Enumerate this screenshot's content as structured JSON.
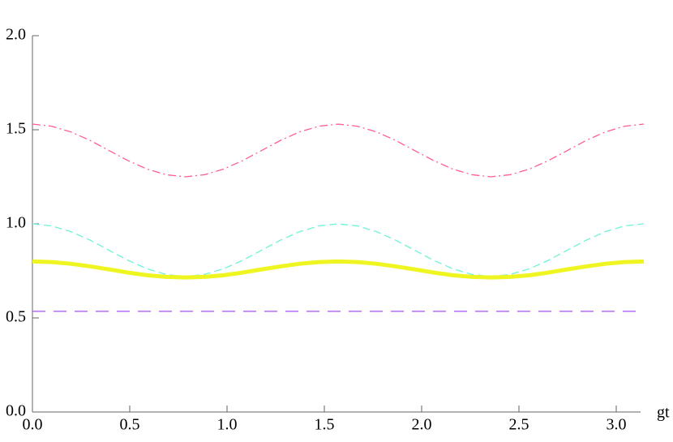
{
  "chart_data": {
    "type": "line",
    "x_label": "gt",
    "x": [
      0,
      0.098,
      0.196,
      0.295,
      0.393,
      0.491,
      0.589,
      0.687,
      0.785,
      0.884,
      0.982,
      1.08,
      1.178,
      1.276,
      1.374,
      1.473,
      1.571,
      1.669,
      1.767,
      1.865,
      1.963,
      2.062,
      2.16,
      2.258,
      2.356,
      2.454,
      2.553,
      2.651,
      2.749,
      2.847,
      2.945,
      3.043,
      3.142
    ],
    "series": [
      {
        "color": "#ff5f93",
        "dash": "10,4,2,4",
        "width": 1.3,
        "values": [
          1.53,
          1.519,
          1.489,
          1.444,
          1.39,
          1.336,
          1.291,
          1.261,
          1.25,
          1.261,
          1.291,
          1.336,
          1.39,
          1.444,
          1.489,
          1.519,
          1.53,
          1.519,
          1.489,
          1.444,
          1.39,
          1.336,
          1.291,
          1.261,
          1.25,
          1.261,
          1.291,
          1.336,
          1.39,
          1.444,
          1.489,
          1.519,
          1.53
        ]
      },
      {
        "color": "#6ff2d6",
        "dash": "9,5",
        "width": 1.3,
        "values": [
          1.0,
          0.989,
          0.959,
          0.914,
          0.86,
          0.806,
          0.761,
          0.731,
          0.72,
          0.731,
          0.761,
          0.806,
          0.86,
          0.914,
          0.959,
          0.989,
          1.0,
          0.989,
          0.959,
          0.914,
          0.86,
          0.806,
          0.761,
          0.731,
          0.72,
          0.731,
          0.761,
          0.806,
          0.86,
          0.914,
          0.959,
          0.989,
          1.0
        ]
      },
      {
        "color": "#eef520",
        "dash": "none",
        "width": 5,
        "values": [
          0.8,
          0.797,
          0.788,
          0.774,
          0.758,
          0.741,
          0.727,
          0.718,
          0.715,
          0.718,
          0.727,
          0.741,
          0.758,
          0.774,
          0.788,
          0.797,
          0.8,
          0.797,
          0.788,
          0.774,
          0.758,
          0.741,
          0.727,
          0.718,
          0.715,
          0.718,
          0.727,
          0.741,
          0.758,
          0.774,
          0.788,
          0.797,
          0.8
        ]
      },
      {
        "color": "#a64ff0",
        "dash": "16,10",
        "width": 1.3,
        "values": [
          0.535,
          0.535,
          0.535,
          0.535,
          0.535,
          0.535,
          0.535,
          0.535,
          0.535,
          0.535,
          0.535,
          0.535,
          0.535,
          0.535,
          0.535,
          0.535,
          0.535,
          0.535,
          0.535,
          0.535,
          0.535,
          0.535,
          0.535,
          0.535,
          0.535,
          0.535,
          0.535,
          0.535,
          0.535,
          0.535,
          0.535,
          0.535,
          0.535
        ]
      }
    ],
    "xlim": [
      0,
      3.142
    ],
    "ylim": [
      0,
      2
    ],
    "xticks": [
      {
        "value": 0,
        "label": "0.0"
      },
      0.5,
      {
        "value": 1,
        "label": "1.0"
      },
      1.5,
      {
        "value": 2,
        "label": "2.0"
      },
      2.5,
      {
        "value": 3,
        "label": "3.0"
      }
    ],
    "yticks": [
      {
        "value": 0,
        "label": "0.0"
      },
      0.5,
      {
        "value": 1,
        "label": "1.0"
      },
      1.5,
      {
        "value": 2,
        "label": "2.0"
      }
    ]
  }
}
